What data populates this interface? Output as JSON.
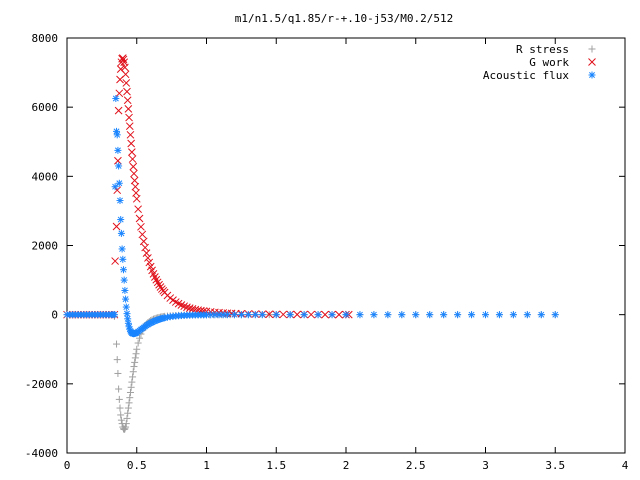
{
  "chart_data": {
    "type": "scatter",
    "title": "m1/n1.5/q1.85/r-+.10-j53/M0.2/512",
    "xlabel": "",
    "ylabel": "",
    "xlim": [
      0,
      4
    ],
    "ylim": [
      -4000,
      8000
    ],
    "x_ticks": [
      0,
      0.5,
      1,
      1.5,
      2,
      2.5,
      3,
      3.5,
      4
    ],
    "x_tick_labels": [
      "0",
      "0.5",
      "1",
      "1.5",
      "2",
      "2.5",
      "3",
      "3.5",
      "4"
    ],
    "y_ticks": [
      -4000,
      -2000,
      0,
      2000,
      4000,
      6000,
      8000
    ],
    "y_tick_labels": [
      "-4000",
      "-2000",
      "0",
      "2000",
      "4000",
      "6000",
      "8000"
    ],
    "grid": false,
    "legend_position": "top-right",
    "series": [
      {
        "name": "R stress",
        "marker": "plus",
        "color": "#a0a0a0",
        "x": [
          0,
          0.02,
          0.04,
          0.06,
          0.08,
          0.1,
          0.12,
          0.14,
          0.16,
          0.18,
          0.2,
          0.22,
          0.24,
          0.26,
          0.28,
          0.3,
          0.32,
          0.34,
          0.355,
          0.36,
          0.365,
          0.37,
          0.375,
          0.38,
          0.385,
          0.39,
          0.395,
          0.4,
          0.405,
          0.41,
          0.415,
          0.42,
          0.425,
          0.43,
          0.435,
          0.44,
          0.445,
          0.45,
          0.455,
          0.46,
          0.465,
          0.47,
          0.475,
          0.48,
          0.485,
          0.49,
          0.495,
          0.5,
          0.51,
          0.52,
          0.53,
          0.54,
          0.55,
          0.56,
          0.57,
          0.58,
          0.59,
          0.6,
          0.61,
          0.62,
          0.63,
          0.64,
          0.65,
          0.66,
          0.67,
          0.68,
          0.69,
          0.7,
          0.72,
          0.74,
          0.76,
          0.78,
          0.8,
          0.82,
          0.84,
          0.86,
          0.88,
          0.9,
          0.92,
          0.94,
          0.96,
          0.98,
          1,
          1.02,
          1.05,
          1.08,
          1.11,
          1.14,
          1.17,
          1.2,
          1.25,
          1.3,
          1.35,
          1.4,
          1.45,
          1.5,
          1.6,
          1.7,
          1.8,
          1.9,
          2,
          2.1,
          2.2,
          2.3,
          2.4,
          2.5,
          2.6,
          2.7,
          2.8,
          2.9,
          3,
          3.1,
          3.2,
          3.3,
          3.4,
          3.5
        ],
        "y": [
          0,
          0,
          0,
          0,
          0,
          0,
          0,
          0,
          0,
          0,
          0,
          0,
          0,
          0,
          0,
          0,
          0,
          -50,
          -850,
          -1300,
          -1700,
          -2150,
          -2450,
          -2700,
          -2900,
          -3050,
          -3150,
          -3250,
          -3300,
          -3320,
          -3300,
          -3250,
          -3150,
          -3000,
          -2850,
          -2700,
          -2550,
          -2400,
          -2250,
          -2100,
          -1950,
          -1800,
          -1650,
          -1500,
          -1380,
          -1250,
          -1130,
          -1000,
          -820,
          -680,
          -560,
          -460,
          -380,
          -320,
          -270,
          -230,
          -200,
          -170,
          -150,
          -130,
          -115,
          -100,
          -90,
          -80,
          -70,
          -62,
          -55,
          -48,
          -40,
          -34,
          -28,
          -24,
          -20,
          -17,
          -14,
          -12,
          -10,
          -8,
          -7,
          -6,
          -5,
          -4,
          -3,
          -3,
          -2,
          -2,
          -2,
          -1,
          -1,
          -1,
          -1,
          0,
          0,
          0,
          0,
          0,
          0,
          0,
          0,
          0,
          0,
          0,
          0,
          0,
          0,
          0,
          0,
          0,
          0,
          0,
          0,
          0,
          0,
          0,
          0,
          0
        ]
      },
      {
        "name": "G work",
        "marker": "cross",
        "color": "#e0101a",
        "x": [
          0,
          0.02,
          0.04,
          0.06,
          0.08,
          0.1,
          0.12,
          0.14,
          0.16,
          0.18,
          0.2,
          0.22,
          0.24,
          0.26,
          0.28,
          0.3,
          0.32,
          0.34,
          0.345,
          0.355,
          0.36,
          0.365,
          0.37,
          0.375,
          0.38,
          0.385,
          0.39,
          0.395,
          0.4,
          0.405,
          0.41,
          0.415,
          0.42,
          0.425,
          0.43,
          0.435,
          0.44,
          0.445,
          0.45,
          0.455,
          0.46,
          0.465,
          0.47,
          0.475,
          0.48,
          0.485,
          0.49,
          0.495,
          0.5,
          0.51,
          0.52,
          0.53,
          0.54,
          0.55,
          0.56,
          0.57,
          0.58,
          0.59,
          0.6,
          0.61,
          0.62,
          0.63,
          0.64,
          0.65,
          0.66,
          0.67,
          0.68,
          0.69,
          0.7,
          0.72,
          0.74,
          0.76,
          0.78,
          0.8,
          0.82,
          0.84,
          0.86,
          0.88,
          0.9,
          0.92,
          0.94,
          0.96,
          0.98,
          1,
          1.03,
          1.06,
          1.09,
          1.12,
          1.15,
          1.18,
          1.21,
          1.25,
          1.3,
          1.35,
          1.4,
          1.45,
          1.5,
          1.55,
          1.6,
          1.65,
          1.7,
          1.75,
          1.8,
          1.85,
          1.9,
          1.95,
          2.0,
          2.02
        ],
        "y": [
          0,
          0,
          0,
          0,
          0,
          0,
          0,
          0,
          0,
          0,
          0,
          0,
          0,
          0,
          0,
          0,
          0,
          0,
          1550,
          2550,
          3600,
          4450,
          5900,
          6400,
          6800,
          7100,
          7300,
          7400,
          7420,
          7380,
          7300,
          7150,
          6950,
          6700,
          6450,
          6200,
          5950,
          5700,
          5450,
          5200,
          4950,
          4700,
          4500,
          4280,
          4080,
          3880,
          3700,
          3520,
          3350,
          3050,
          2780,
          2540,
          2320,
          2120,
          1940,
          1780,
          1640,
          1510,
          1390,
          1280,
          1180,
          1090,
          1010,
          935,
          865,
          800,
          740,
          690,
          640,
          555,
          480,
          420,
          365,
          320,
          280,
          245,
          215,
          190,
          168,
          148,
          132,
          118,
          105,
          94,
          80,
          68,
          58,
          50,
          43,
          37,
          32,
          26,
          21,
          17,
          14,
          11,
          9,
          7,
          6,
          5,
          4,
          3,
          3,
          2,
          2,
          1,
          1,
          1
        ]
      },
      {
        "name": "Acoustic flux",
        "marker": "star",
        "color": "#1a85ff",
        "x": [
          0,
          0.02,
          0.04,
          0.06,
          0.08,
          0.1,
          0.12,
          0.14,
          0.16,
          0.18,
          0.2,
          0.22,
          0.24,
          0.26,
          0.28,
          0.3,
          0.32,
          0.33,
          0.34,
          0.345,
          0.35,
          0.355,
          0.36,
          0.365,
          0.37,
          0.375,
          0.38,
          0.385,
          0.39,
          0.395,
          0.4,
          0.405,
          0.41,
          0.415,
          0.42,
          0.425,
          0.43,
          0.435,
          0.44,
          0.445,
          0.45,
          0.455,
          0.46,
          0.465,
          0.47,
          0.475,
          0.48,
          0.485,
          0.49,
          0.495,
          0.5,
          0.51,
          0.52,
          0.53,
          0.54,
          0.55,
          0.56,
          0.57,
          0.58,
          0.59,
          0.6,
          0.61,
          0.62,
          0.63,
          0.64,
          0.65,
          0.66,
          0.67,
          0.68,
          0.69,
          0.7,
          0.72,
          0.74,
          0.76,
          0.78,
          0.8,
          0.82,
          0.84,
          0.86,
          0.88,
          0.9,
          0.92,
          0.94,
          0.96,
          0.98,
          1,
          1.03,
          1.06,
          1.09,
          1.12,
          1.15,
          1.2,
          1.25,
          1.3,
          1.35,
          1.4,
          1.5,
          1.6,
          1.7,
          1.8,
          1.9,
          2,
          2.1,
          2.2,
          2.3,
          2.4,
          2.5,
          2.6,
          2.7,
          2.8,
          2.9,
          3,
          3.1,
          3.2,
          3.3,
          3.4,
          3.5
        ],
        "y": [
          0,
          0,
          0,
          0,
          0,
          0,
          0,
          0,
          0,
          0,
          0,
          0,
          0,
          0,
          0,
          0,
          0,
          0,
          0,
          3700,
          6250,
          5300,
          5200,
          4750,
          4300,
          3800,
          3300,
          2750,
          2350,
          1900,
          1600,
          1300,
          1000,
          700,
          450,
          220,
          30,
          -120,
          -250,
          -350,
          -420,
          -470,
          -505,
          -530,
          -545,
          -550,
          -550,
          -545,
          -540,
          -530,
          -520,
          -490,
          -460,
          -430,
          -400,
          -370,
          -340,
          -310,
          -285,
          -260,
          -240,
          -220,
          -200,
          -182,
          -166,
          -150,
          -136,
          -123,
          -111,
          -100,
          -90,
          -74,
          -60,
          -49,
          -40,
          -33,
          -27,
          -22,
          -18,
          -15,
          -12,
          -10,
          -8,
          -7,
          -6,
          -5,
          -4,
          -3,
          -2,
          -2,
          -1,
          -1,
          -1,
          0,
          0,
          0,
          0,
          0,
          0,
          0,
          0,
          0,
          0,
          0,
          0,
          0,
          0,
          0,
          0,
          0,
          0,
          0,
          0,
          0,
          0,
          0,
          0
        ]
      }
    ]
  }
}
